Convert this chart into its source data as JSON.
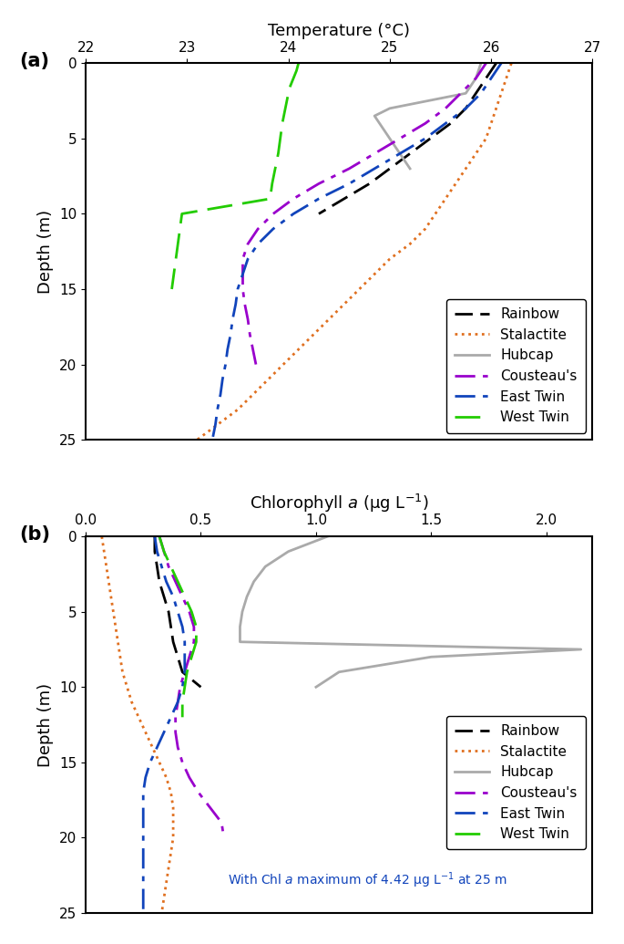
{
  "panel_a": {
    "xlabel_top": "Temperature (°C)",
    "ylabel": "Depth (m)",
    "xlim": [
      22,
      27
    ],
    "ylim": [
      25,
      0
    ],
    "xticks": [
      22,
      23,
      24,
      25,
      26,
      27
    ],
    "yticks": [
      0,
      5,
      10,
      15,
      20,
      25
    ],
    "series": {
      "Rainbow": {
        "color": "black",
        "depth": [
          0,
          1,
          2,
          3,
          4,
          5,
          5.5,
          6,
          7,
          8,
          9,
          10
        ],
        "x": [
          26.05,
          25.95,
          25.85,
          25.75,
          25.6,
          25.4,
          25.3,
          25.2,
          25.0,
          24.8,
          24.55,
          24.3
        ]
      },
      "Stalactite": {
        "color": "#e07020",
        "depth": [
          0,
          1,
          2,
          3,
          4,
          5,
          6,
          7,
          8,
          9,
          10,
          11,
          12,
          13,
          14,
          15,
          16,
          17,
          18,
          19,
          20,
          21,
          22,
          23,
          24,
          25
        ],
        "x": [
          26.2,
          26.15,
          26.1,
          26.05,
          26.0,
          25.95,
          25.85,
          25.75,
          25.65,
          25.55,
          25.45,
          25.35,
          25.2,
          25.0,
          24.85,
          24.7,
          24.55,
          24.4,
          24.25,
          24.1,
          23.95,
          23.8,
          23.65,
          23.5,
          23.3,
          23.1
        ]
      },
      "Hubcap": {
        "color": "#aaaaaa",
        "depth": [
          0,
          1,
          2,
          3,
          3.5,
          4,
          5,
          6,
          7
        ],
        "x": [
          25.9,
          25.85,
          25.75,
          25.0,
          24.85,
          24.9,
          25.0,
          25.1,
          25.2
        ]
      },
      "Cousteau": {
        "color": "#9900cc",
        "depth": [
          0,
          1,
          2,
          3,
          4,
          5,
          6,
          7,
          8,
          9,
          10,
          11,
          12,
          13,
          14,
          15,
          16,
          17,
          18,
          19,
          20
        ],
        "x": [
          25.95,
          25.85,
          25.7,
          25.55,
          25.35,
          25.1,
          24.85,
          24.6,
          24.3,
          24.05,
          23.85,
          23.7,
          23.6,
          23.55,
          23.55,
          23.55,
          23.57,
          23.6,
          23.62,
          23.65,
          23.68
        ]
      },
      "EastTwin": {
        "color": "#1144bb",
        "depth": [
          0,
          1,
          2,
          3,
          4,
          5,
          6,
          7,
          8,
          9,
          10,
          11,
          12,
          13,
          14,
          15,
          16,
          17,
          18,
          19,
          20,
          21,
          22,
          23,
          24,
          25
        ],
        "x": [
          26.1,
          26.0,
          25.9,
          25.75,
          25.55,
          25.35,
          25.1,
          24.85,
          24.6,
          24.3,
          24.05,
          23.85,
          23.7,
          23.6,
          23.55,
          23.5,
          23.48,
          23.45,
          23.43,
          23.4,
          23.38,
          23.35,
          23.33,
          23.3,
          23.28,
          23.25
        ]
      },
      "WestTwin": {
        "color": "#22cc00",
        "depth": [
          0,
          0.5,
          1,
          1.5,
          2,
          3,
          4,
          5,
          5.5,
          6,
          7,
          8,
          9,
          10,
          15
        ],
        "x": [
          24.1,
          24.08,
          24.05,
          24.02,
          24.0,
          23.97,
          23.94,
          23.92,
          23.91,
          23.9,
          23.87,
          23.84,
          23.82,
          22.95,
          22.85
        ]
      }
    },
    "legend": [
      "Rainbow",
      "Stalactite",
      "Hubcap",
      "Cousteau's",
      "East Twin",
      "West Twin"
    ]
  },
  "panel_b": {
    "xlabel_top": "Chlorophyll $a$ (μg L$^{-1}$)",
    "ylabel": "Depth (m)",
    "xlim": [
      0.0,
      2.2
    ],
    "ylim": [
      25,
      0
    ],
    "xticks": [
      0.0,
      0.5,
      1.0,
      1.5,
      2.0
    ],
    "ytick_labels": [
      "0",
      "5",
      "10",
      "15",
      "20",
      "25"
    ],
    "yticks": [
      0,
      5,
      10,
      15,
      20,
      25
    ],
    "annotation": "With Chl $a$ maximum of 4.42 μg L$^{-1}$ at 25 m",
    "series": {
      "Rainbow": {
        "color": "black",
        "depth": [
          0,
          1,
          2,
          3,
          4,
          5,
          6,
          7,
          8,
          9,
          10
        ],
        "x": [
          0.3,
          0.3,
          0.31,
          0.32,
          0.34,
          0.36,
          0.37,
          0.38,
          0.4,
          0.42,
          0.5
        ]
      },
      "Stalactite": {
        "color": "#e07020",
        "depth": [
          0,
          1,
          2,
          3,
          4,
          5,
          6,
          7,
          8,
          9,
          10,
          11,
          12,
          13,
          14,
          15,
          16,
          17,
          18,
          19,
          20,
          21,
          22,
          23,
          24,
          25
        ],
        "x": [
          0.07,
          0.08,
          0.09,
          0.1,
          0.11,
          0.12,
          0.13,
          0.14,
          0.15,
          0.16,
          0.18,
          0.2,
          0.23,
          0.26,
          0.29,
          0.32,
          0.35,
          0.37,
          0.38,
          0.38,
          0.38,
          0.37,
          0.36,
          0.35,
          0.34,
          0.33
        ]
      },
      "Hubcap": {
        "color": "#aaaaaa",
        "depth": [
          0,
          1,
          2,
          3,
          4,
          5,
          6,
          7,
          7.5,
          8,
          9,
          10
        ],
        "x": [
          1.05,
          0.88,
          0.78,
          0.73,
          0.7,
          0.68,
          0.67,
          0.67,
          2.15,
          1.5,
          1.1,
          1.0
        ]
      },
      "Cousteau": {
        "color": "#9900cc",
        "depth": [
          0,
          0.5,
          1,
          2,
          3,
          4,
          5,
          6,
          7,
          8,
          9,
          10,
          11,
          12,
          13,
          14,
          15,
          16,
          17,
          18,
          19,
          20
        ],
        "x": [
          0.32,
          0.33,
          0.34,
          0.36,
          0.39,
          0.42,
          0.45,
          0.47,
          0.47,
          0.45,
          0.43,
          0.41,
          0.4,
          0.39,
          0.39,
          0.4,
          0.42,
          0.45,
          0.49,
          0.54,
          0.59,
          0.6
        ]
      },
      "EastTwin": {
        "color": "#1144bb",
        "depth": [
          0,
          1,
          2,
          3,
          4,
          5,
          6,
          7,
          8,
          9,
          10,
          11,
          12,
          13,
          14,
          15,
          16,
          17,
          18,
          19,
          20,
          21,
          22,
          23,
          24,
          25
        ],
        "x": [
          0.3,
          0.31,
          0.33,
          0.35,
          0.38,
          0.4,
          0.42,
          0.43,
          0.43,
          0.43,
          0.42,
          0.4,
          0.37,
          0.34,
          0.31,
          0.28,
          0.26,
          0.25,
          0.25,
          0.25,
          0.25,
          0.25,
          0.25,
          0.25,
          0.25,
          0.25
        ]
      },
      "WestTwin": {
        "color": "#22cc00",
        "depth": [
          0,
          1,
          2,
          3,
          4,
          5,
          6,
          7,
          8,
          9,
          10,
          11,
          12
        ],
        "x": [
          0.32,
          0.34,
          0.37,
          0.4,
          0.43,
          0.46,
          0.48,
          0.48,
          0.46,
          0.44,
          0.43,
          0.42,
          0.42
        ]
      }
    },
    "legend": [
      "Rainbow",
      "Stalactite",
      "Hubcap",
      "Cousteau's",
      "East Twin",
      "West Twin"
    ]
  }
}
